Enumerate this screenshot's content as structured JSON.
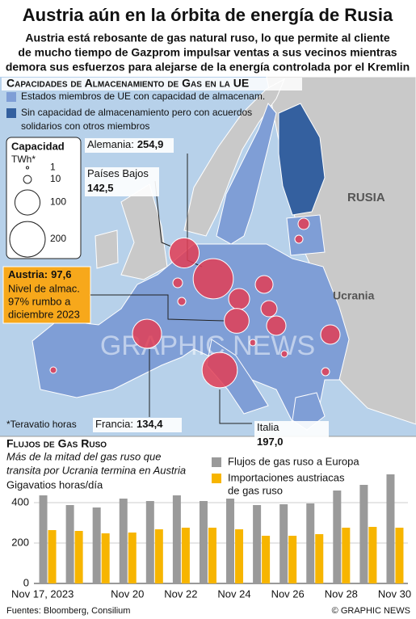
{
  "header": {
    "title": "Austria aún en la órbita de energía de Rusia",
    "subtitle": [
      "Austria está rebosante de gas natural ruso, lo que permite al cliente",
      "de mucho tiempo de Gazprom impulsar ventas a sus vecinos mientras",
      "demora sus esfuerzos para alejarse de la energía controlada por el Kremlin"
    ]
  },
  "map": {
    "title": "Capacidades de Almacenamiento de Gas en la UE",
    "legend": [
      {
        "text": [
          "Estados miembros de UE con capacidad de almacenam."
        ],
        "color": "#7f9ed6"
      },
      {
        "text": [
          "Sin capacidad de almacenamiento pero con acuerdos",
          "solidarios con otros miembros"
        ],
        "color": "#34609f"
      }
    ],
    "size_legend": {
      "title": "Capacidad",
      "unit": "TWh*",
      "values": [
        1,
        10,
        100,
        200
      ]
    },
    "bubble_color": "#e23d55",
    "bubbles": [
      {
        "name": "Alemania:",
        "value": 254.9,
        "value_label": "254,9"
      },
      {
        "name": "Países Bajos",
        "value": 142.5,
        "value_label": "142,5"
      },
      {
        "name": "Austria:",
        "value": 97.6,
        "value_label": "97,6"
      },
      {
        "name": "Francia:",
        "value": 134.4,
        "value_label": "134,4"
      },
      {
        "name": "Italia",
        "value": 197.0,
        "value_label": "197,0"
      }
    ],
    "austria_note": [
      "Nivel de almac.",
      "97% rumbo a",
      "diciembre 2023"
    ],
    "places": [
      "RUSIA",
      "Ucrania"
    ],
    "footnote": "*Teravatio horas",
    "watermark": "GRAPHIC NEWS"
  },
  "chart_data": {
    "type": "bar",
    "title": "Flujos de Gas Ruso",
    "subtitle": [
      "Más de la mitad del gas ruso que",
      "transita por Ucrania termina en Austria"
    ],
    "y_label": "Gigavatios horas/día",
    "categories": [
      "Nov 17, 2023",
      null,
      null,
      "Nov 20",
      null,
      "Nov 22",
      null,
      "Nov 24",
      null,
      "Nov 26",
      null,
      "Nov 28",
      null,
      "Nov 30"
    ],
    "series": [
      {
        "name": "Flujos de gas ruso a Europa",
        "color": "#9a9a9a",
        "values": [
          436,
          388,
          376,
          420,
          408,
          436,
          408,
          420,
          388,
          392,
          396,
          460,
          488,
          540
        ]
      },
      {
        "name": [
          "Importaciones austriacas",
          "de gas ruso"
        ],
        "color": "#f7b500",
        "values": [
          264,
          260,
          248,
          252,
          268,
          276,
          276,
          268,
          236,
          236,
          244,
          276,
          280,
          276
        ]
      }
    ],
    "ylim": [
      0,
      560
    ],
    "yticks": [
      0,
      200,
      400
    ],
    "grid": true
  },
  "footer": {
    "source": "Fuentes: Bloomberg, Consilium",
    "credit": "© GRAPHIC NEWS"
  }
}
